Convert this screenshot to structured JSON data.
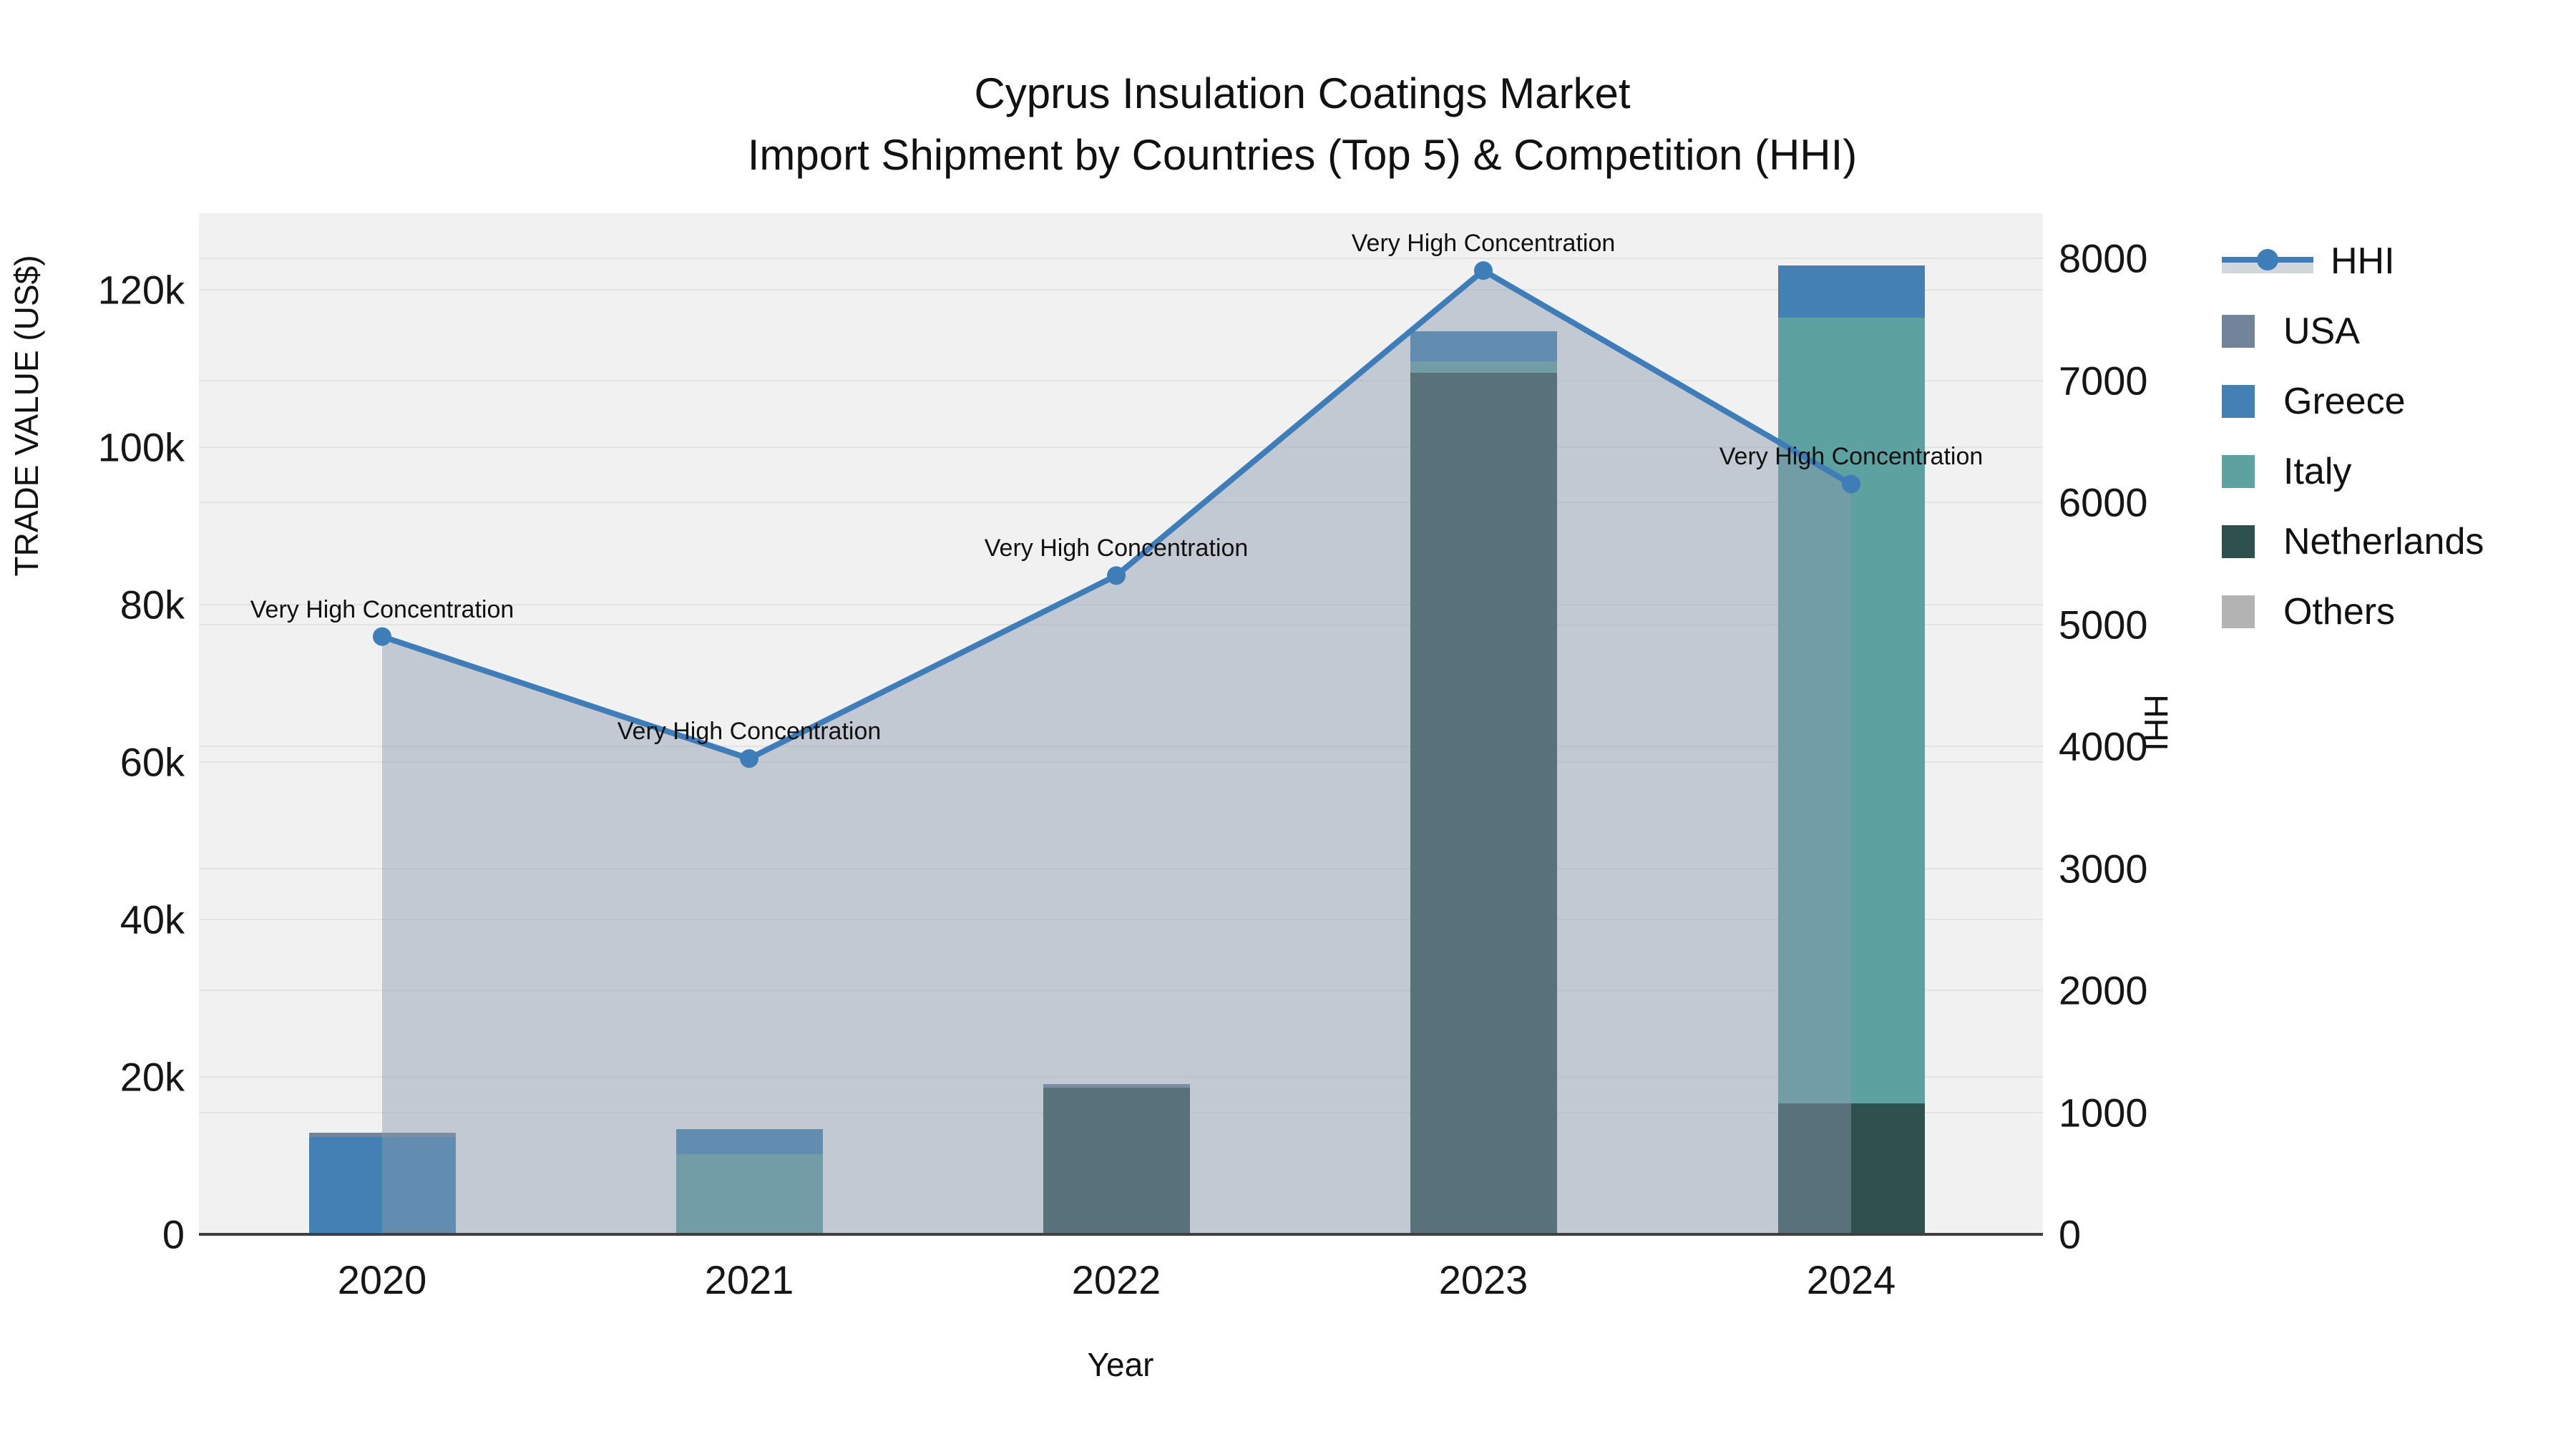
{
  "title": {
    "line1": "Cyprus Insulation Coatings Market",
    "line2": "Import Shipment by Countries (Top 5) & Competition (HHI)"
  },
  "axes": {
    "left": {
      "label": "TRADE VALUE (US$)",
      "ticks": [
        {
          "label": "0",
          "v": 0
        },
        {
          "label": "20k",
          "v": 20000
        },
        {
          "label": "40k",
          "v": 40000
        },
        {
          "label": "60k",
          "v": 60000
        },
        {
          "label": "80k",
          "v": 80000
        },
        {
          "label": "100k",
          "v": 100000
        },
        {
          "label": "120k",
          "v": 120000
        }
      ]
    },
    "right": {
      "label": "HHI",
      "ticks": [
        {
          "label": "0",
          "v": 0
        },
        {
          "label": "1000",
          "v": 1000
        },
        {
          "label": "2000",
          "v": 2000
        },
        {
          "label": "3000",
          "v": 3000
        },
        {
          "label": "4000",
          "v": 4000
        },
        {
          "label": "5000",
          "v": 5000
        },
        {
          "label": "6000",
          "v": 6000
        },
        {
          "label": "7000",
          "v": 7000
        },
        {
          "label": "8000",
          "v": 8000
        }
      ]
    },
    "x": {
      "label": "Year",
      "ticks": [
        "2020",
        "2021",
        "2022",
        "2023",
        "2024"
      ]
    }
  },
  "legend": [
    {
      "label": "HHI",
      "type": "line",
      "color": "#3e7db8"
    },
    {
      "label": "USA",
      "type": "bar",
      "color": "#72849a"
    },
    {
      "label": "Greece",
      "type": "bar",
      "color": "#4381b5"
    },
    {
      "label": "Italy",
      "type": "bar",
      "color": "#5da1a0"
    },
    {
      "label": "Netherlands",
      "type": "bar",
      "color": "#2e5150"
    },
    {
      "label": "Others",
      "type": "bar",
      "color": "#b3b3b3"
    }
  ],
  "annotation_text": "Very High Concentration",
  "chart_data": {
    "type": "combo",
    "categories": [
      "2020",
      "2021",
      "2022",
      "2023",
      "2024"
    ],
    "bar_stack_order": [
      "Netherlands",
      "Italy",
      "Greece",
      "USA",
      "Others"
    ],
    "series": [
      {
        "name": "USA",
        "type": "bar",
        "color": "#72849a",
        "values": [
          500,
          0,
          450,
          0,
          0
        ]
      },
      {
        "name": "Greece",
        "type": "bar",
        "color": "#4381b5",
        "values": [
          12400,
          3200,
          0,
          3800,
          6700
        ]
      },
      {
        "name": "Italy",
        "type": "bar",
        "color": "#5da1a0",
        "values": [
          0,
          10200,
          0,
          1500,
          99800
        ]
      },
      {
        "name": "Netherlands",
        "type": "bar",
        "color": "#2e5150",
        "values": [
          0,
          0,
          18650,
          109400,
          16600
        ]
      },
      {
        "name": "Others",
        "type": "bar",
        "color": "#b3b3b3",
        "values": [
          0,
          0,
          0,
          0,
          0
        ]
      },
      {
        "name": "HHI",
        "type": "line",
        "color": "#3e7db8",
        "area_fill": "rgba(139,152,173,0.45)",
        "axis": "right",
        "values": [
          4900,
          3900,
          5400,
          7900,
          6150
        ],
        "point_annotations": [
          "Very High Concentration",
          "Very High Concentration",
          "Very High Concentration",
          "Very High Concentration",
          "Very High Concentration"
        ]
      }
    ],
    "title": "Cyprus Insulation Coatings Market — Import Shipment by Countries (Top 5) & Competition (HHI)",
    "xlabel": "Year",
    "ylabel_left": "TRADE VALUE (US$)",
    "ylabel_right": "HHI",
    "ylim_left": [
      0,
      129700
    ],
    "ylim_right": [
      0,
      8370
    ],
    "grid": true,
    "legend_position": "right"
  }
}
